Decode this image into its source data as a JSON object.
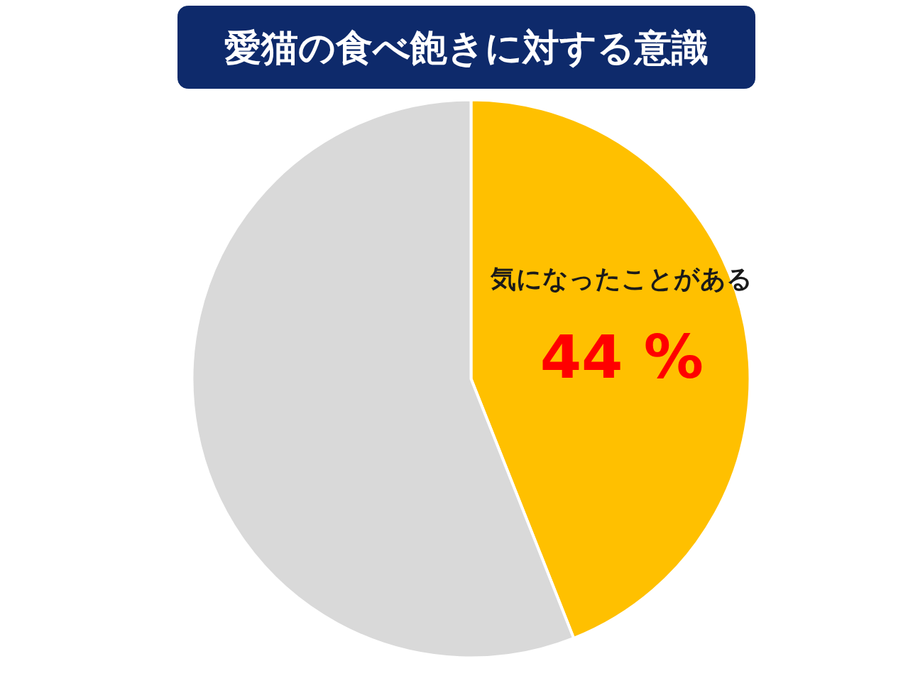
{
  "chart_data": {
    "type": "pie",
    "title": "愛猫の食べ飽きに対する意識",
    "categories": [
      "気になったことがある",
      null
    ],
    "values": [
      44,
      56
    ],
    "colors": [
      "#ffc000",
      "#d9d9d9"
    ],
    "value_labels": [
      "44 %",
      null
    ]
  }
}
